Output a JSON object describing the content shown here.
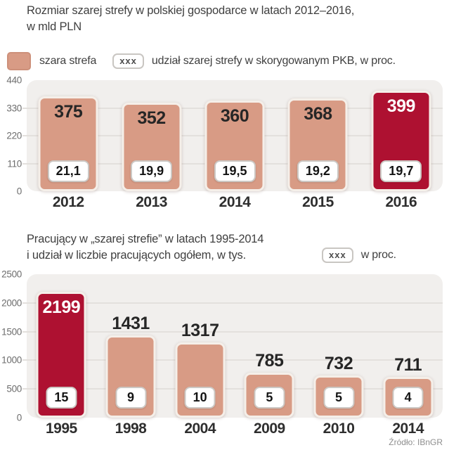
{
  "source": "Źródło: IBnGR",
  "colors": {
    "salmon": "#d89b85",
    "crimson": "#ae1131",
    "plot_bg": "#f1efed",
    "grid": "#e3e0dd"
  },
  "chart_data": [
    {
      "type": "bar",
      "title_lines": [
        "Rozmiar szarej strefy w polskiej gospodarce w latach 2012–2016,",
        "w mld PLN"
      ],
      "categories": [
        "2012",
        "2013",
        "2014",
        "2015",
        "2016"
      ],
      "series": [
        {
          "name": "szara strefa",
          "values": [
            375,
            352,
            360,
            368,
            399
          ]
        },
        {
          "name": "udział szarej strefy w skorygowanym PKB, w proc.",
          "values": [
            "21,1",
            "19,9",
            "19,5",
            "19,2",
            "19,7"
          ]
        }
      ],
      "highlight_index": 4,
      "ylim": [
        0,
        440
      ],
      "yticks": [
        0,
        110,
        220,
        330,
        440
      ],
      "grid": true,
      "legend_position": "top",
      "value_label_placement": "inside",
      "legend": [
        {
          "type": "swatch",
          "label": "szara strefa"
        },
        {
          "type": "badge",
          "badge_text": "xxx",
          "label": "udział szarej strefy w skorygowanym PKB, w proc."
        }
      ]
    },
    {
      "type": "bar",
      "title_lines": [
        "Pracujący w „szarej strefie” w latach 1995-2014",
        "i udział w liczbie pracujących ogółem, w tys."
      ],
      "categories": [
        "1995",
        "1998",
        "2004",
        "2009",
        "2010",
        "2014"
      ],
      "series": [
        {
          "name": "pracujący w „szarej strefie”, w tys.",
          "values": [
            2199,
            1431,
            1317,
            785,
            732,
            711
          ]
        },
        {
          "name": "w proc.",
          "values": [
            "15",
            "9",
            "10",
            "5",
            "5",
            "4"
          ]
        }
      ],
      "highlight_index": 0,
      "ylim": [
        0,
        2500
      ],
      "yticks": [
        0,
        500,
        1000,
        1500,
        2000,
        2500
      ],
      "grid": true,
      "legend_position": "title-right",
      "value_label_placement": "above",
      "legend": [
        {
          "type": "badge",
          "badge_text": "xxx",
          "label": "w proc."
        }
      ]
    }
  ]
}
